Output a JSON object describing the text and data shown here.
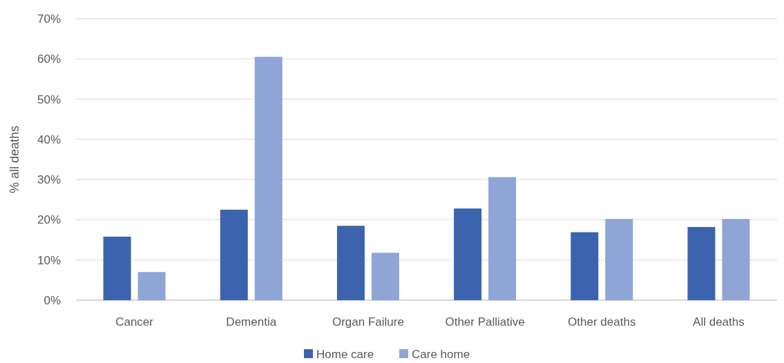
{
  "chart_data": {
    "type": "bar",
    "ylabel": "% all deaths",
    "categories": [
      "Cancer",
      "Dementia",
      "Organ Failure",
      "Other Palliative",
      "Other deaths",
      "All deaths"
    ],
    "series": [
      {
        "name": "Home care",
        "color": "#3c64ae",
        "values": [
          15.8,
          22.5,
          18.5,
          22.8,
          16.9,
          18.2
        ]
      },
      {
        "name": "Care home",
        "color": "#8fa5d6",
        "values": [
          7.0,
          60.5,
          11.8,
          30.6,
          20.2,
          20.2
        ]
      }
    ],
    "ylim": [
      0,
      70
    ],
    "yticks": [
      {
        "value": 0,
        "label": "0%"
      },
      {
        "value": 10,
        "label": "10%"
      },
      {
        "value": 20,
        "label": "20%"
      },
      {
        "value": 30,
        "label": "30%"
      },
      {
        "value": 40,
        "label": "40%"
      },
      {
        "value": 50,
        "label": "50%"
      },
      {
        "value": 60,
        "label": "60%"
      },
      {
        "value": 70,
        "label": "70%"
      }
    ],
    "grid": "y",
    "legend": "bottom"
  }
}
